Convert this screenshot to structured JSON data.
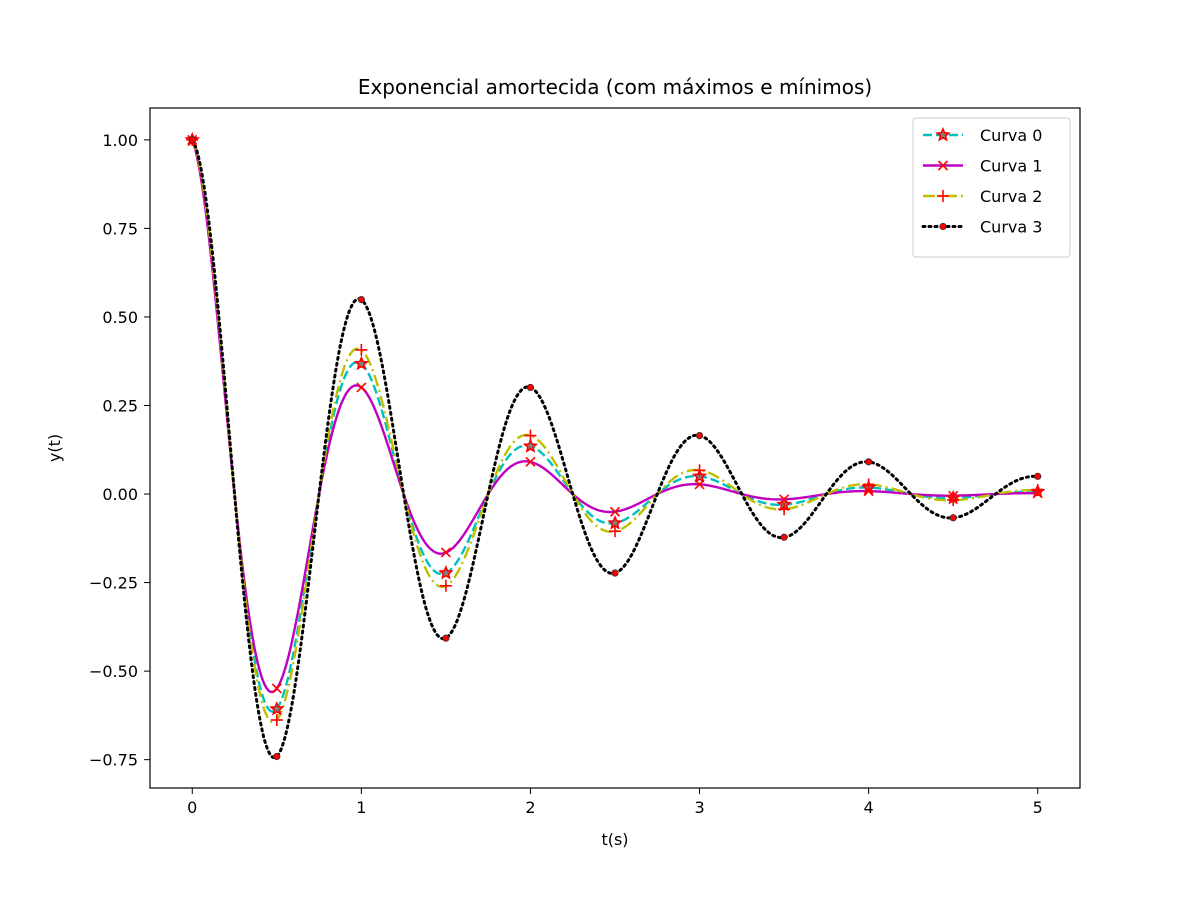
{
  "chart_data": {
    "type": "line",
    "title": "Exponencial amortecida (com máximos e mínimos)",
    "xlabel": "t(s)",
    "ylabel": "y(t)",
    "xlim": [
      -0.25,
      5.25
    ],
    "ylim": [
      -0.83,
      1.09
    ],
    "x_ticks": [
      0,
      1,
      2,
      3,
      4,
      5
    ],
    "x_tick_labels": [
      "0",
      "1",
      "2",
      "3",
      "4",
      "5"
    ],
    "y_ticks": [
      1.0,
      0.75,
      0.5,
      0.25,
      0.0,
      -0.25,
      -0.5,
      -0.75
    ],
    "y_tick_labels": [
      "1.00",
      "0.75",
      "0.50",
      "0.25",
      "0.00",
      "−0.25",
      "−0.50",
      "−0.75"
    ],
    "grid": false,
    "legend_position": "top-right",
    "frequency_hz": 1.0,
    "series": [
      {
        "name": "Curva 0",
        "decay": 1.0,
        "color": "#00bfbf",
        "line_style": "dashed",
        "marker": "star",
        "marker_color": "#ff0000",
        "extrema_x": [
          0,
          0.5,
          1,
          1.5,
          2,
          2.5,
          3,
          3.5,
          4,
          4.5,
          5
        ],
        "extrema_y": [
          1.0,
          -0.607,
          0.368,
          -0.223,
          0.135,
          -0.082,
          0.05,
          -0.03,
          0.018,
          -0.011,
          0.007
        ]
      },
      {
        "name": "Curva 1",
        "decay": 1.2,
        "color": "#bf00bf",
        "line_style": "solid",
        "marker": "x",
        "marker_color": "#ff0000",
        "extrema_x": [
          0,
          0.5,
          1,
          1.5,
          2,
          2.5,
          3,
          3.5,
          4,
          4.5,
          5
        ],
        "extrema_y": [
          1.0,
          -0.549,
          0.301,
          -0.165,
          0.091,
          -0.05,
          0.027,
          -0.015,
          0.008,
          -0.005,
          0.002
        ]
      },
      {
        "name": "Curva 2",
        "decay": 0.9,
        "color": "#bfbf00",
        "line_style": "dashdot",
        "marker": "plus",
        "marker_color": "#ff0000",
        "extrema_x": [
          0,
          0.5,
          1,
          1.5,
          2,
          2.5,
          3,
          3.5,
          4,
          4.5,
          5
        ],
        "extrema_y": [
          1.0,
          -0.638,
          0.407,
          -0.259,
          0.165,
          -0.105,
          0.067,
          -0.043,
          0.027,
          -0.017,
          0.011
        ]
      },
      {
        "name": "Curva 3",
        "decay": 0.6,
        "color": "#000000",
        "line_style": "dotted",
        "marker": "dot",
        "marker_color": "#ff0000",
        "extrema_x": [
          0,
          0.5,
          1,
          1.5,
          2,
          2.5,
          3,
          3.5,
          4,
          4.5,
          5
        ],
        "extrema_y": [
          1.0,
          -0.741,
          0.549,
          -0.407,
          0.301,
          -0.223,
          0.165,
          -0.122,
          0.091,
          -0.067,
          0.05
        ]
      }
    ]
  }
}
